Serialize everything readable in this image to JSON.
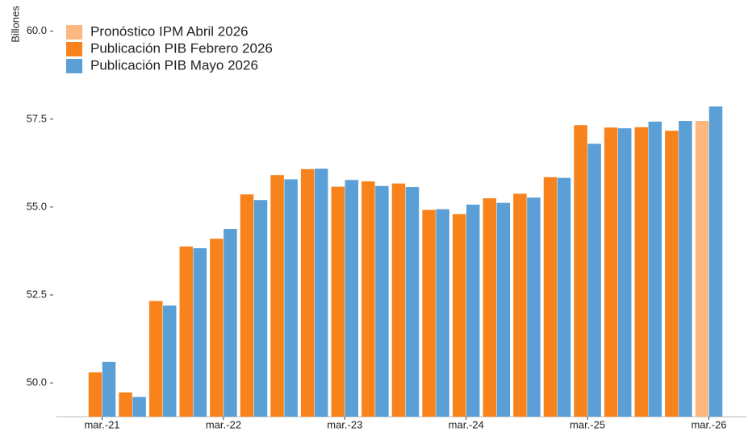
{
  "chart_data": {
    "type": "bar",
    "y_axis_label": "Billones",
    "categories": [
      "mar.-21",
      null,
      null,
      null,
      "mar.-22",
      null,
      null,
      null,
      "mar.-23",
      null,
      null,
      null,
      "mar.-24",
      null,
      null,
      null,
      "mar.-25",
      null,
      null,
      null,
      "mar.-26"
    ],
    "series": [
      {
        "name": "Pronóstico IPM Abril 2026",
        "color": "#fdb880",
        "values": [
          null,
          null,
          null,
          null,
          null,
          null,
          null,
          null,
          null,
          null,
          null,
          null,
          null,
          null,
          null,
          null,
          null,
          null,
          null,
          null,
          57.45
        ]
      },
      {
        "name": "Publicación PIB Febrero 2026",
        "color": "#f8821c",
        "values": [
          50.3,
          49.73,
          52.33,
          53.88,
          54.1,
          55.36,
          55.91,
          56.08,
          55.58,
          55.73,
          55.67,
          54.92,
          54.8,
          55.25,
          55.38,
          55.85,
          57.33,
          57.26,
          57.27,
          57.17,
          null
        ]
      },
      {
        "name": "Publicación PIB Mayo 2026",
        "color": "#5a9fd6",
        "values": [
          50.6,
          49.6,
          52.2,
          53.83,
          54.38,
          55.2,
          55.79,
          56.09,
          55.77,
          55.6,
          55.57,
          54.94,
          55.07,
          55.12,
          55.27,
          55.83,
          56.8,
          57.24,
          57.43,
          57.45,
          57.86
        ]
      }
    ],
    "ylim": [
      49.04,
      60.2
    ],
    "yticks": [
      {
        "value": 50,
        "label": "50.0"
      },
      52.5,
      {
        "value": 55,
        "label": "55.0"
      },
      57.5,
      {
        "value": 60,
        "label": "60.0"
      }
    ],
    "legend": "top-left"
  }
}
